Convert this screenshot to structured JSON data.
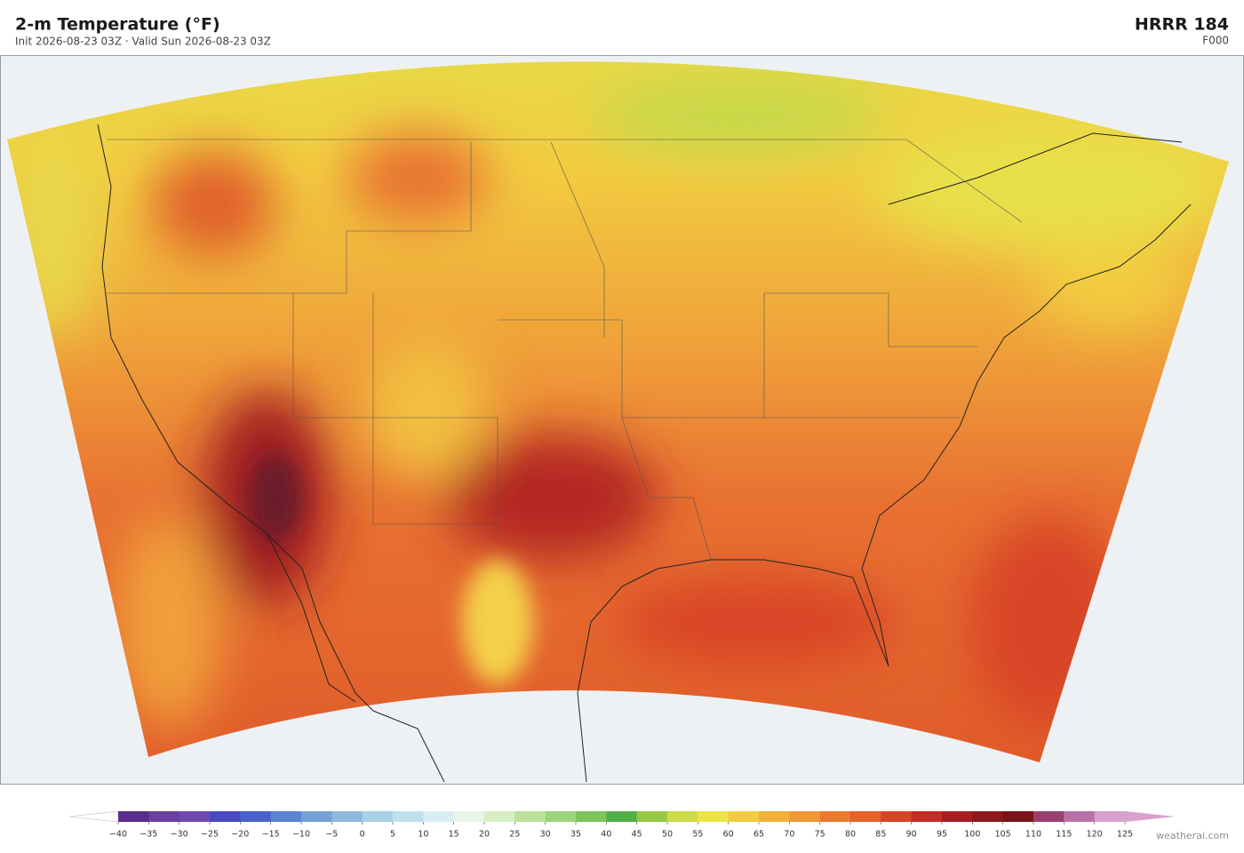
{
  "header": {
    "title": "2-m Temperature  (°F)",
    "subtitle": "Init 2026-08-23 03Z  ·  Valid Sun 2026-08-23 03Z",
    "model": "HRRR  184",
    "forecast_hour": "F000"
  },
  "colorbar": {
    "ticks": [
      {
        "value": -40,
        "label": "−40"
      },
      {
        "value": -35,
        "label": "−35"
      },
      {
        "value": -30,
        "label": "−30"
      },
      {
        "value": -25,
        "label": "−25"
      },
      {
        "value": -20,
        "label": "−20"
      },
      {
        "value": -15,
        "label": "−15"
      },
      {
        "value": -10,
        "label": "−10"
      },
      {
        "value": -5,
        "label": "−5"
      },
      0,
      5,
      10,
      15,
      20,
      25,
      30,
      35,
      40,
      45,
      50,
      55,
      60,
      65,
      70,
      75,
      80,
      85,
      90,
      95,
      100,
      105,
      110,
      115,
      120,
      125
    ],
    "colors": [
      "#5a2d8c",
      "#6b3fa0",
      "#6f4bb0",
      "#4a4ac0",
      "#4a62c8",
      "#5a84d0",
      "#74a2d8",
      "#8fb8de",
      "#a8d0e6",
      "#c0e0ee",
      "#d8eef2",
      "#e6f5e8",
      "#d6eec4",
      "#bce29a",
      "#9cd478",
      "#7cc460",
      "#52b04a",
      "#98c84a",
      "#cddc48",
      "#ece444",
      "#f2cc40",
      "#f2b03c",
      "#ee9838",
      "#ea7a32",
      "#e4602c",
      "#d84428",
      "#c42c24",
      "#a81e20",
      "#8c1a1c",
      "#781418",
      "#9a4070",
      "#b870a8",
      "#d8a0cc"
    ],
    "under_color": "#ffffff",
    "over_color": "#d8a0cc"
  },
  "footer": {
    "credit": "weatherai.com"
  }
}
